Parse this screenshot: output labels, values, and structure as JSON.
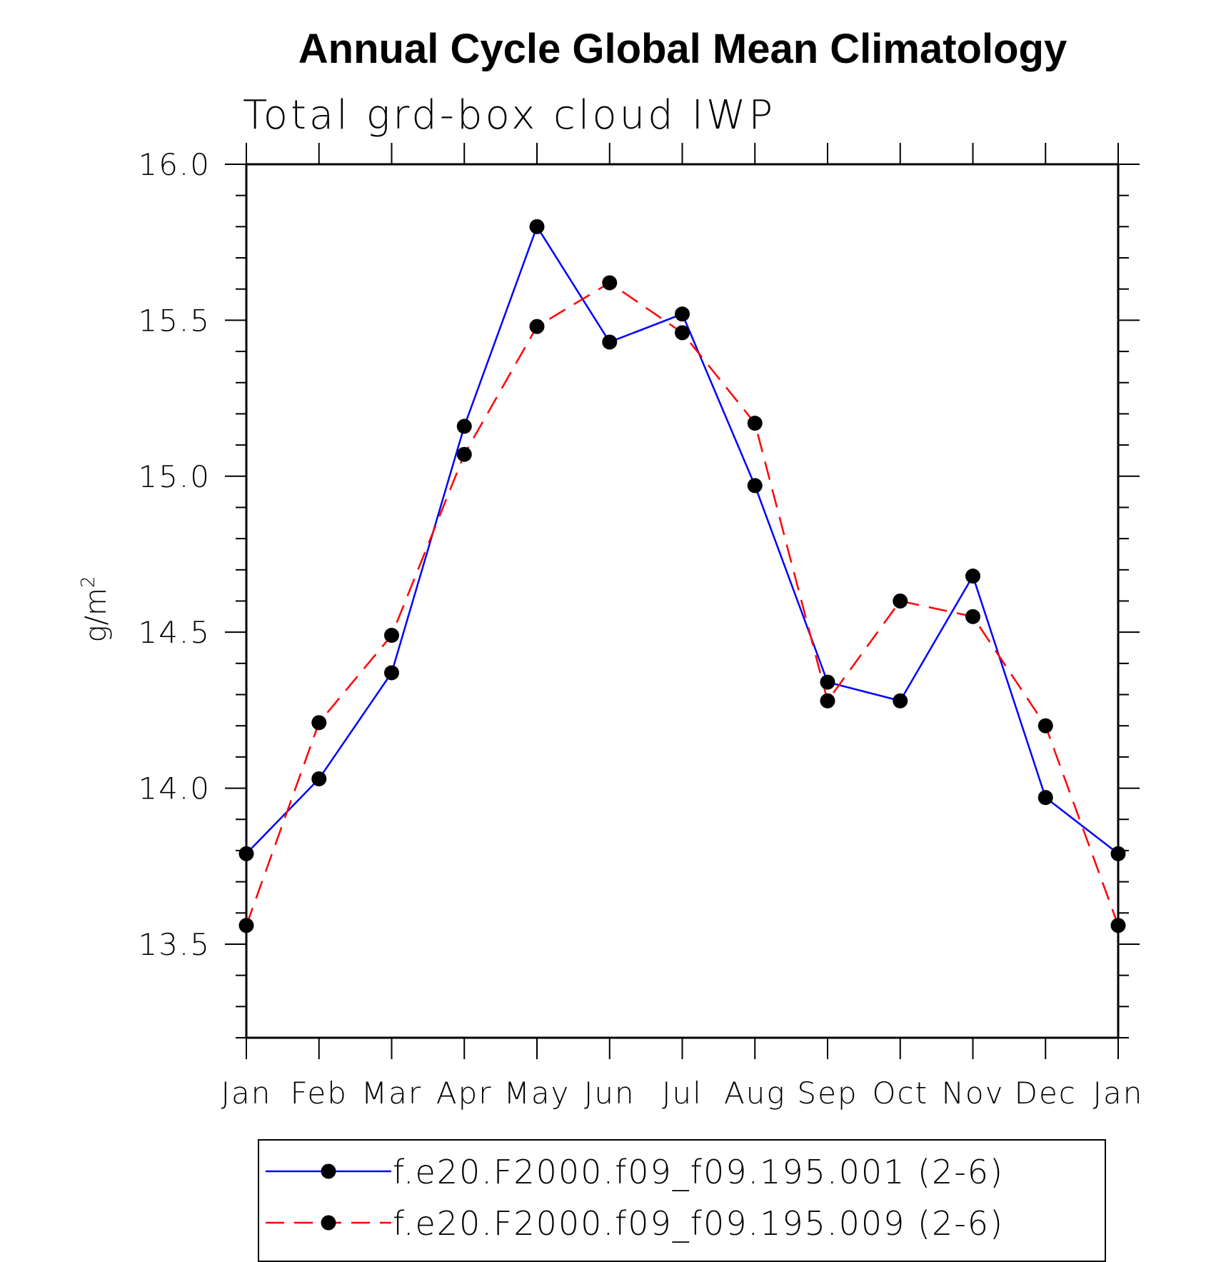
{
  "chart_data": {
    "type": "line",
    "title": "Annual Cycle Global Mean Climatology",
    "subtitle": "Total grd-box cloud IWP",
    "ylabel": "g/m",
    "ylabel_sup": "2",
    "xlabel": "",
    "categories": [
      "Jan",
      "Feb",
      "Mar",
      "Apr",
      "May",
      "Jun",
      "Jul",
      "Aug",
      "Sep",
      "Oct",
      "Nov",
      "Dec",
      "Jan"
    ],
    "ylim": [
      13.2,
      16.0
    ],
    "yticks": [
      "16.0",
      "15.5",
      "15.0",
      "14.5",
      "14.0",
      "13.5"
    ],
    "legend_position": "bottom",
    "series": [
      {
        "name": "f.e20.F2000.f09_f09.195.001 (2-6)",
        "color": "#0000ff",
        "dash": "solid",
        "values": [
          13.79,
          14.03,
          14.37,
          15.16,
          15.8,
          15.43,
          15.52,
          14.97,
          14.34,
          14.28,
          14.68,
          13.97,
          13.79
        ]
      },
      {
        "name": "f.e20.F2000.f09_f09.195.009 (2-6)",
        "color": "#ff0000",
        "dash": "dashed",
        "values": [
          13.56,
          14.21,
          14.49,
          15.07,
          15.48,
          15.62,
          15.46,
          15.17,
          14.28,
          14.6,
          14.55,
          14.2,
          13.56
        ]
      }
    ]
  }
}
